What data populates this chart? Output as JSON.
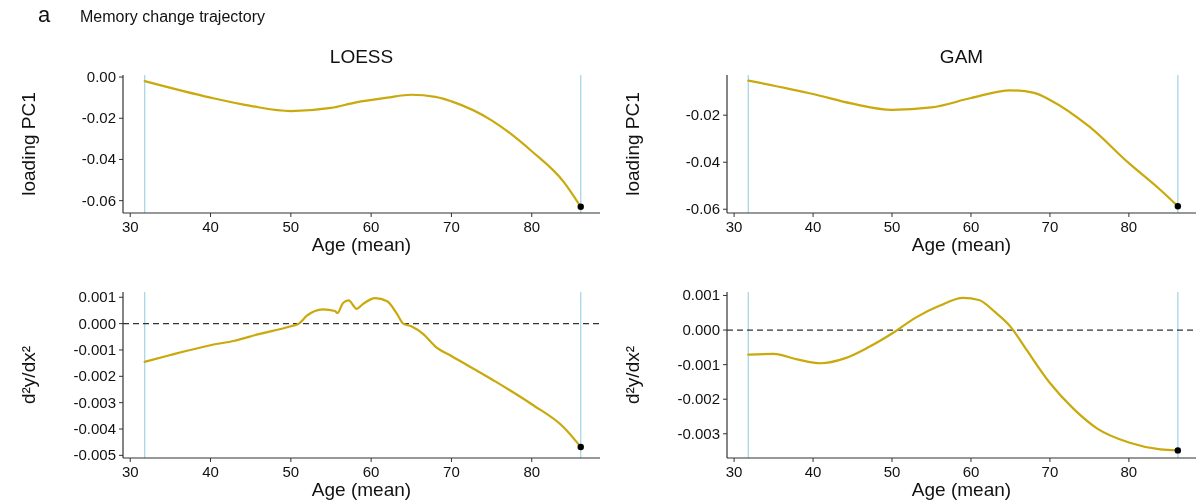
{
  "chart_data": [
    {
      "type": "line",
      "title": "LOESS",
      "annotations": [
        "a",
        "Memory change trajectory"
      ],
      "xlabel": "Age (mean)",
      "ylabel": "loading PC1",
      "xlim": [
        29.1,
        88.5
      ],
      "xticks": [
        30,
        40,
        50,
        60,
        70,
        80
      ],
      "ylim": [
        -0.066,
        0.001
      ],
      "yticks": [
        {
          "value": 0,
          "label": "0.00"
        },
        {
          "value": -0.02,
          "label": "-0.02"
        },
        {
          "value": -0.04,
          "label": "-0.04"
        },
        {
          "value": -0.06,
          "label": "-0.06"
        }
      ],
      "series": [
        {
          "type": "line",
          "color": "#c9a90c",
          "x": [
            31.8,
            40,
            45,
            50,
            55,
            58,
            62,
            65,
            68,
            70,
            75,
            80,
            84,
            86.1
          ],
          "values": [
            -0.002,
            -0.01,
            -0.014,
            -0.0165,
            -0.015,
            -0.0124,
            -0.01,
            -0.0086,
            -0.0096,
            -0.0118,
            -0.021,
            -0.036,
            -0.051,
            -0.063
          ]
        },
        {
          "type": "scatter",
          "marker": "circle",
          "color": "#000000",
          "x": [
            86.1
          ],
          "values": [
            -0.063
          ]
        }
      ],
      "ref_lines": [
        {
          "axis": "x",
          "value": 31.8,
          "color": "#a6d8e6",
          "line_style": "solid"
        },
        {
          "axis": "x",
          "value": 86.1,
          "color": "#a6d8e6",
          "line_style": "solid"
        }
      ]
    },
    {
      "type": "line",
      "title": "GAM",
      "xlabel": "Age (mean)",
      "ylabel": "loading PC1",
      "xlim": [
        29.1,
        88.5
      ],
      "xticks": [
        30,
        40,
        50,
        60,
        70,
        80
      ],
      "ylim": [
        -0.0616,
        -0.0029
      ],
      "yticks": [
        {
          "value": -0.02,
          "label": "-0.02"
        },
        {
          "value": -0.04,
          "label": "-0.04"
        },
        {
          "value": -0.06,
          "label": "-0.06"
        }
      ],
      "series": [
        {
          "type": "line",
          "color": "#c9a90c",
          "x": [
            31.8,
            40,
            45,
            50,
            55,
            60,
            65,
            68,
            70,
            75,
            80,
            84,
            86.2
          ],
          "values": [
            -0.0053,
            -0.011,
            -0.0151,
            -0.0177,
            -0.0167,
            -0.0127,
            -0.0094,
            -0.0105,
            -0.0135,
            -0.0249,
            -0.0404,
            -0.0518,
            -0.0587
          ]
        },
        {
          "type": "scatter",
          "marker": "circle",
          "color": "#000000",
          "x": [
            86.2
          ],
          "values": [
            -0.0587
          ]
        }
      ],
      "ref_lines": [
        {
          "axis": "x",
          "value": 31.8,
          "color": "#a6d8e6",
          "line_style": "solid"
        },
        {
          "axis": "x",
          "value": 86.2,
          "color": "#a6d8e6",
          "line_style": "solid"
        }
      ]
    },
    {
      "type": "line",
      "xlabel": "Age (mean)",
      "ylabel": "d²y/dx²",
      "xlim": [
        29.1,
        88.5
      ],
      "xticks": [
        30,
        40,
        50,
        60,
        70,
        80
      ],
      "ylim": [
        -0.0051,
        0.0012
      ],
      "yticks": [
        {
          "value": 0.001,
          "label": "0.001"
        },
        {
          "value": 0,
          "label": "0.000"
        },
        {
          "value": -0.001,
          "label": "-0.001"
        },
        {
          "value": -0.002,
          "label": "-0.002"
        },
        {
          "value": -0.003,
          "label": "-0.003"
        },
        {
          "value": -0.004,
          "label": "-0.004"
        },
        {
          "value": -0.005,
          "label": "-0.005"
        }
      ],
      "series": [
        {
          "type": "line",
          "color": "#c9a90c",
          "x": [
            31.8,
            35,
            40,
            43,
            46,
            50,
            51,
            52,
            54,
            55.5,
            55.8,
            56.5,
            57.2,
            58.2,
            59,
            60.5,
            62,
            63.2,
            64,
            65,
            66.5,
            68,
            70,
            75,
            80,
            84,
            86.1
          ],
          "values": [
            -0.00145,
            -0.00119,
            -0.00082,
            -0.00065,
            -0.0004,
            -0.0001,
            0,
            0.0003,
            0.00054,
            0.00048,
            0.0004,
            0.00078,
            0.00088,
            0.00056,
            0.00075,
            0.00097,
            0.00085,
            0.00038,
            0,
            -0.0001,
            -0.0004,
            -0.00087,
            -0.00123,
            -0.00211,
            -0.00306,
            -0.00394,
            -0.00468
          ]
        },
        {
          "type": "scatter",
          "marker": "circle",
          "color": "#000000",
          "x": [
            86.1
          ],
          "values": [
            -0.00468
          ]
        }
      ],
      "ref_lines": [
        {
          "axis": "x",
          "value": 31.8,
          "color": "#a6d8e6",
          "line_style": "solid"
        },
        {
          "axis": "x",
          "value": 86.1,
          "color": "#a6d8e6",
          "line_style": "solid"
        },
        {
          "axis": "y",
          "value": 0,
          "color": "#333333",
          "line_style": "dashed"
        }
      ]
    },
    {
      "type": "line",
      "xlabel": "Age (mean)",
      "ylabel": "d²y/dx²",
      "xlim": [
        29.1,
        88.5
      ],
      "xticks": [
        30,
        40,
        50,
        60,
        70,
        80
      ],
      "ylim": [
        -0.0037,
        0.0011
      ],
      "yticks": [
        {
          "value": 0.001,
          "label": "0.001"
        },
        {
          "value": 0,
          "label": "0.000"
        },
        {
          "value": -0.001,
          "label": "-0.001"
        },
        {
          "value": -0.002,
          "label": "-0.002"
        },
        {
          "value": -0.003,
          "label": "-0.003"
        }
      ],
      "series": [
        {
          "type": "line",
          "color": "#c9a90c",
          "x": [
            31.8,
            35,
            38,
            41,
            44,
            47,
            50,
            53,
            56,
            59,
            61,
            63,
            65,
            67,
            70,
            73,
            76,
            80,
            84,
            86.2
          ],
          "values": [
            -0.00071,
            -0.00069,
            -0.00085,
            -0.00096,
            -0.00082,
            -0.0005,
            -0.0001,
            0.00036,
            0.0007,
            0.00093,
            0.00087,
            0.00053,
            0.0001,
            -0.00056,
            -0.00153,
            -0.00228,
            -0.00285,
            -0.00325,
            -0.00345,
            -0.00348
          ]
        },
        {
          "type": "scatter",
          "marker": "circle",
          "color": "#000000",
          "x": [
            86.2
          ],
          "values": [
            -0.00348
          ]
        }
      ],
      "ref_lines": [
        {
          "axis": "x",
          "value": 31.8,
          "color": "#a6d8e6",
          "line_style": "solid"
        },
        {
          "axis": "x",
          "value": 86.2,
          "color": "#a6d8e6",
          "line_style": "solid"
        },
        {
          "axis": "y",
          "value": 0,
          "color": "#333333",
          "line_style": "dashed"
        }
      ]
    }
  ]
}
